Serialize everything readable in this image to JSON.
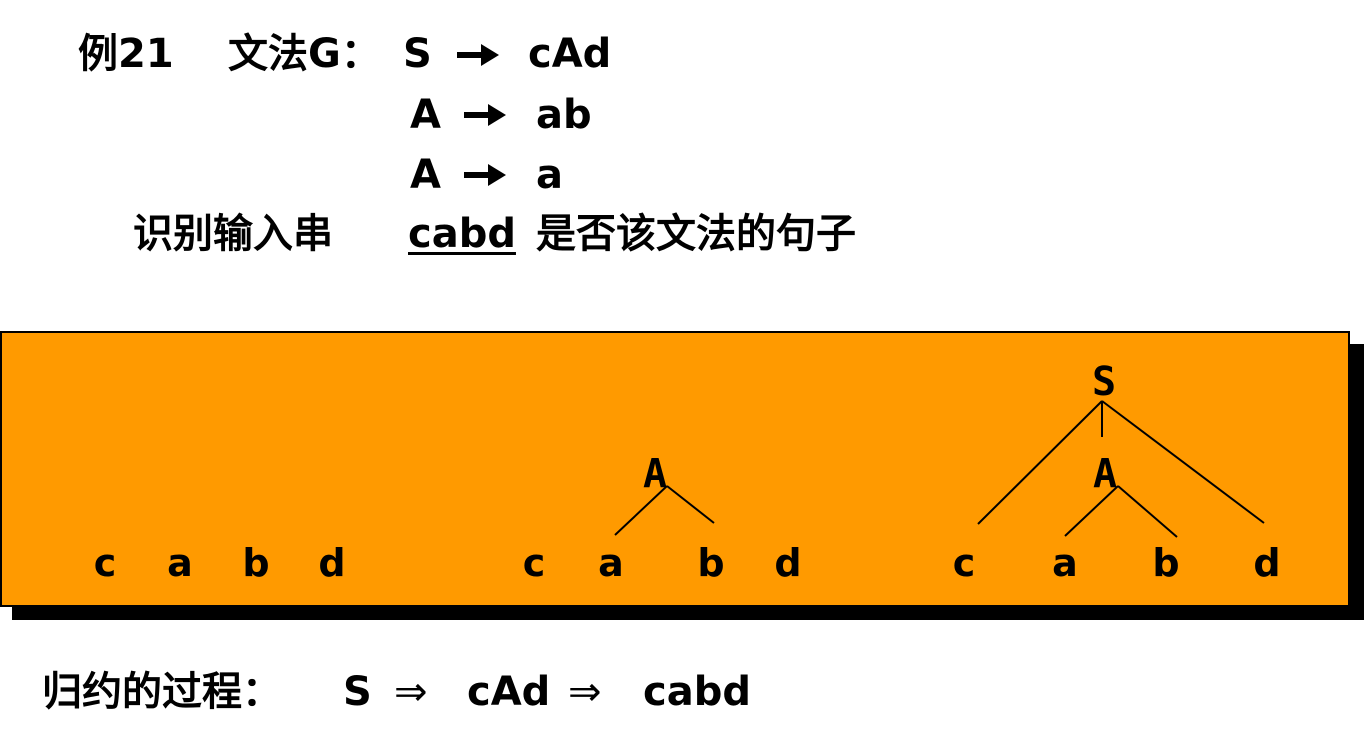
{
  "example_label": "例21",
  "grammar_label": "文法G：",
  "productions": [
    {
      "lhs": "S",
      "rhs": "cAd"
    },
    {
      "lhs": "A",
      "rhs": "ab"
    },
    {
      "lhs": "A",
      "rhs": "a"
    }
  ],
  "task": {
    "prefix": "识别输入串",
    "input": "cabd",
    "suffix": "是否该文法的句子"
  },
  "trees": {
    "stage1": {
      "leaves": [
        "c",
        "a",
        "b",
        "d"
      ]
    },
    "stage2": {
      "node": "A",
      "leaves": [
        "c",
        "a",
        "b",
        "d"
      ]
    },
    "stage3": {
      "root": "S",
      "node": "A",
      "leaves": [
        "c",
        "a",
        "b",
        "d"
      ]
    }
  },
  "reduction": {
    "label": "归约的过程：",
    "steps": [
      "S",
      "cAd",
      "cabd"
    ],
    "symbol": "⇒"
  },
  "colors": {
    "panel": "#ff9a00",
    "shadow": "#000000"
  }
}
